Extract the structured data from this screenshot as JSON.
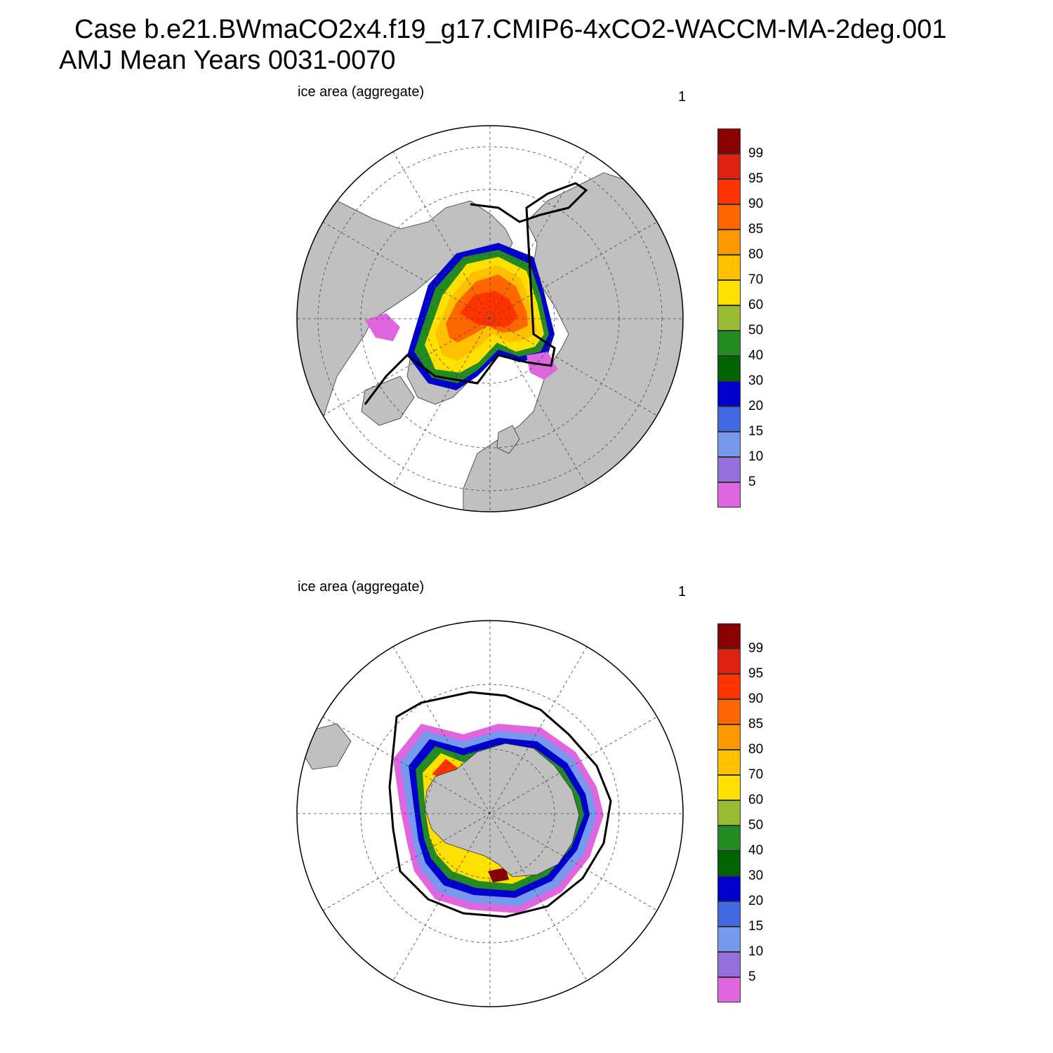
{
  "header": {
    "title_line1": "Case b.e21.BWmaCO2x4.f19_g17.CMIP6-4xCO2-WACCM-MA-2deg.001",
    "title_line2": "AMJ Mean   Years 0031-0070"
  },
  "panels": [
    {
      "id": "north",
      "title": "ice area  (aggregate)",
      "number": "1"
    },
    {
      "id": "south",
      "title": "ice area  (aggregate)",
      "number": "1"
    }
  ],
  "colorbar": {
    "colors": [
      "#e066e0",
      "#9370db",
      "#7799ee",
      "#4169e1",
      "#0000cd",
      "#006400",
      "#228b22",
      "#99bb33",
      "#ffe000",
      "#ffc000",
      "#ff9900",
      "#ff6600",
      "#ff3300",
      "#dd2211",
      "#880000"
    ],
    "labels": [
      "5",
      "10",
      "15",
      "20",
      "30",
      "40",
      "50",
      "60",
      "70",
      "80",
      "85",
      "90",
      "95",
      "99"
    ]
  },
  "colors": {
    "land": "#c0c0c0",
    "ocean": "#ffffff",
    "edge_line": "#000000"
  }
}
